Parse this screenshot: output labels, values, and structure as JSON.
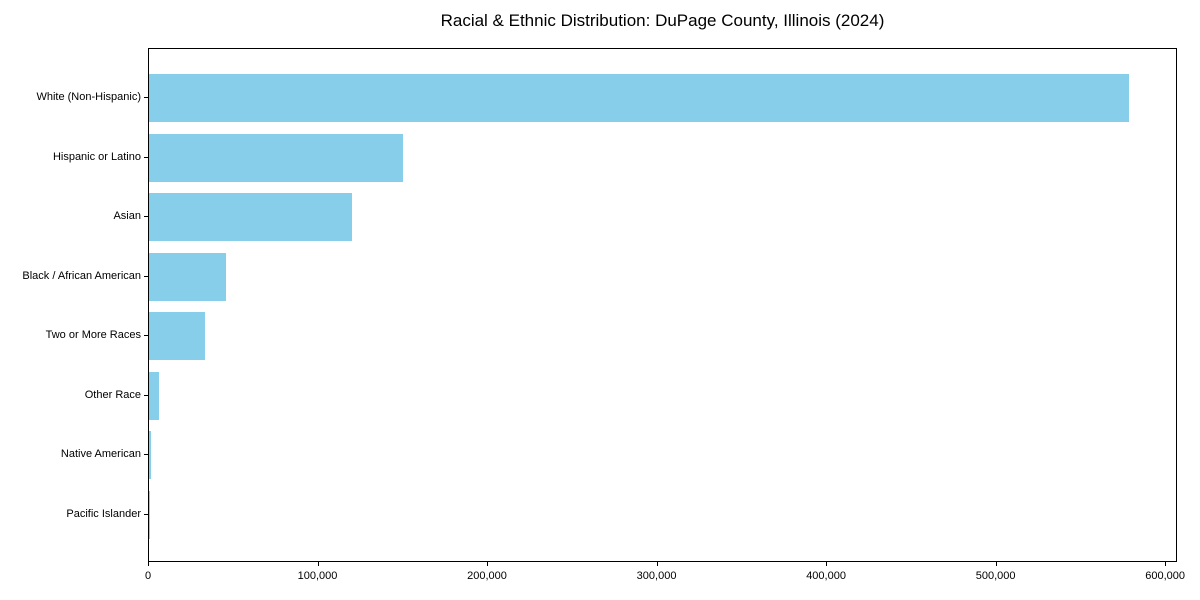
{
  "title": "Racial & Ethnic Distribution: DuPage County, Illinois (2024)",
  "colors": {
    "bar": "#87CEEB",
    "spine": "#000000",
    "text": "#000000",
    "background": "#ffffff"
  },
  "chart_data": {
    "type": "bar",
    "orientation": "horizontal",
    "title": "Racial & Ethnic Distribution: DuPage County, Illinois (2024)",
    "xlabel": "",
    "ylabel": "",
    "categories": [
      "White (Non-Hispanic)",
      "Hispanic or Latino",
      "Asian",
      "Black / African American",
      "Two or More Races",
      "Other Race",
      "Native American",
      "Pacific Islander"
    ],
    "values": [
      578000,
      150000,
      120000,
      45500,
      33000,
      6000,
      1000,
      300
    ],
    "xlim": [
      0,
      607000
    ],
    "x_ticks": [
      0,
      100000,
      200000,
      300000,
      400000,
      500000,
      600000
    ],
    "x_tick_labels": [
      "0",
      "100,000",
      "200,000",
      "300,000",
      "400,000",
      "500,000",
      "600,000"
    ],
    "grid": false,
    "legend": null,
    "bar_color": "#87CEEB"
  }
}
